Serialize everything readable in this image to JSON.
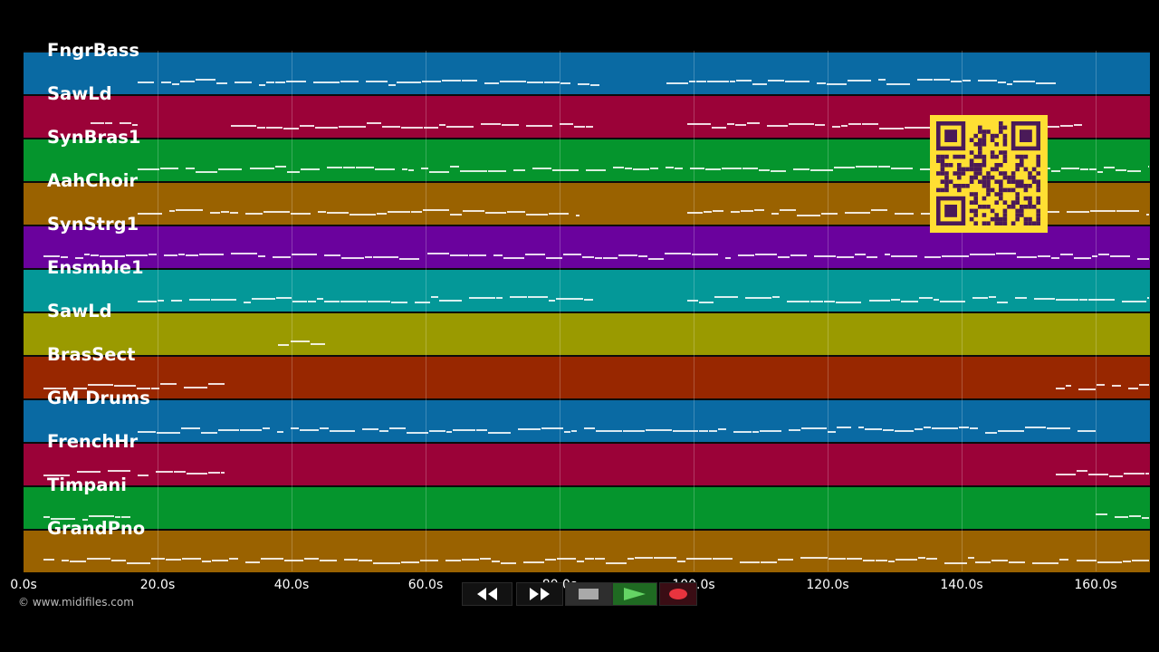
{
  "tracks": [
    {
      "name": "FngrBass",
      "color": "#0a6aa3"
    },
    {
      "name": "SawLd",
      "color": "#9b0238"
    },
    {
      "name": "SynBras1",
      "color": "#05952d"
    },
    {
      "name": "AahChoir",
      "color": "#9a6200"
    },
    {
      "name": "SynStrg1",
      "color": "#6a029d"
    },
    {
      "name": "Ensmble1",
      "color": "#049898"
    },
    {
      "name": "SawLd",
      "color": "#9a9a00"
    },
    {
      "name": "BrasSect",
      "color": "#982700"
    },
    {
      "name": "GM Drums",
      "color": "#0a6aa3"
    },
    {
      "name": "FrenchHr",
      "color": "#9b0238"
    },
    {
      "name": "Timpani",
      "color": "#05952d"
    },
    {
      "name": "GrandPno",
      "color": "#9a6200"
    }
  ],
  "timeline": {
    "max_seconds": 168,
    "ticks": [
      "0.0s",
      "20.0s",
      "40.0s",
      "60.0s",
      "80.0s",
      "100.0s",
      "120.0s",
      "140.0s",
      "160.0s"
    ],
    "tick_seconds": [
      0,
      20,
      40,
      60,
      80,
      100,
      120,
      140,
      160
    ]
  },
  "activity": [
    [
      [
        17,
        86
      ],
      [
        96,
        154
      ]
    ],
    [
      [
        10,
        17
      ],
      [
        31,
        85
      ],
      [
        99,
        158
      ]
    ],
    [
      [
        17,
        168
      ]
    ],
    [
      [
        17,
        83
      ],
      [
        99,
        168
      ]
    ],
    [
      [
        3,
        168
      ]
    ],
    [
      [
        17,
        85
      ],
      [
        99,
        168
      ]
    ],
    [
      [
        38,
        45
      ]
    ],
    [
      [
        3,
        30
      ],
      [
        154,
        168
      ]
    ],
    [
      [
        17,
        160
      ]
    ],
    [
      [
        3,
        30
      ],
      [
        154,
        168
      ]
    ],
    [
      [
        3,
        16
      ],
      [
        160,
        168
      ]
    ],
    [
      [
        3,
        168
      ]
    ]
  ],
  "copyright": "© www.midifiles.com",
  "transport": {
    "rewind_icon": "rewind-icon",
    "fast_forward_icon": "fast-forward-icon",
    "stop_icon": "stop-icon",
    "play_icon": "play-icon",
    "record_icon": "record-icon"
  },
  "qr_code": "qr-code-icon"
}
